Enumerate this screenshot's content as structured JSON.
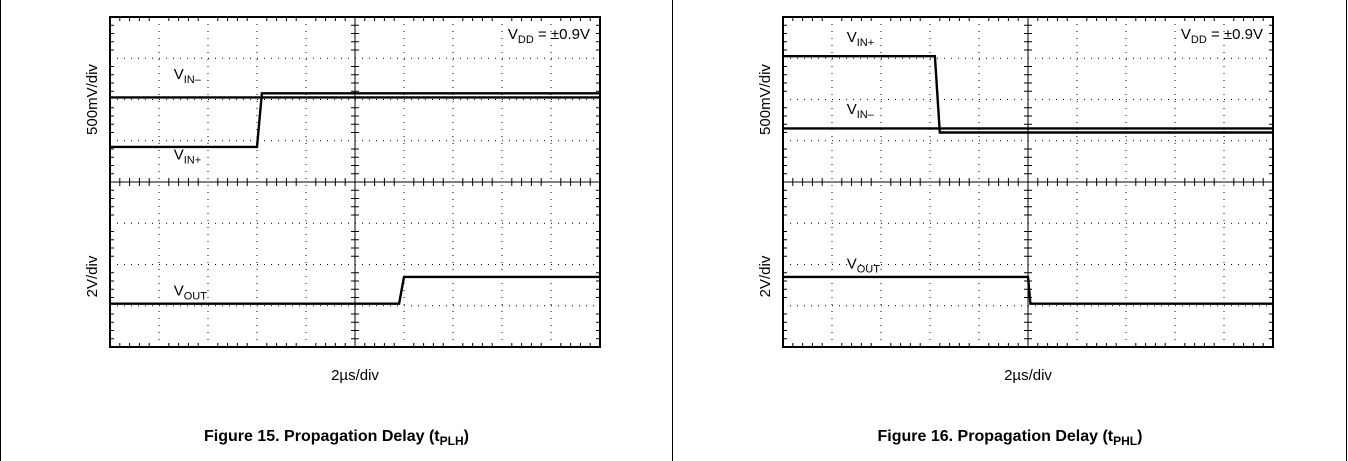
{
  "chart_data": [
    {
      "type": "line",
      "figure": "Figure 15. Propagation Delay (t",
      "figure_sub": "PLH",
      "figure_end": ")",
      "xlabel": "2µs/div",
      "ylabel_top": "500mV/div",
      "ylabel_bottom": "2V/div",
      "annotation": {
        "main": "V",
        "sub": "DD",
        "rest": " = ±0.9V"
      },
      "grid": {
        "x_divisions": 10,
        "y_divisions": 8
      },
      "xlim": [
        0,
        10
      ],
      "ylim": [
        0,
        8
      ],
      "series": [
        {
          "name": "V",
          "name_sub": "IN–",
          "x": [
            0,
            6.1
          ],
          "y": [
            6.05,
            6.05
          ],
          "label_at": [
            1.3,
            6.5
          ]
        },
        {
          "name": "V",
          "name_sub": "IN+",
          "x": [
            0,
            3.0,
            3.1,
            6.1
          ],
          "y": [
            4.85,
            4.85,
            6.15,
            6.15
          ],
          "label_at": [
            1.3,
            4.55
          ]
        },
        {
          "name": "V",
          "name_sub": "OUT",
          "x": [
            0,
            5.9,
            6.0,
            10
          ],
          "y": [
            1.05,
            1.05,
            1.7,
            1.7
          ],
          "label_at": [
            1.3,
            1.25
          ]
        },
        {
          "name": "",
          "name_sub": "",
          "x": [
            6.1,
            10
          ],
          "y": [
            6.05,
            6.05
          ],
          "label_at": null
        },
        {
          "name": "",
          "name_sub": "",
          "x": [
            6.1,
            10
          ],
          "y": [
            6.15,
            6.15
          ],
          "label_at": null
        }
      ]
    },
    {
      "type": "line",
      "figure": "Figure 16. Propagation Delay (t",
      "figure_sub": "PHL",
      "figure_end": ")",
      "xlabel": "2µs/div",
      "ylabel_top": "500mV/div",
      "ylabel_bottom": "2V/div",
      "annotation": {
        "main": "V",
        "sub": "DD",
        "rest": " = ±0.9V"
      },
      "grid": {
        "x_divisions": 10,
        "y_divisions": 8
      },
      "xlim": [
        0,
        10
      ],
      "ylim": [
        0,
        8
      ],
      "series": [
        {
          "name": "V",
          "name_sub": "IN+",
          "x": [
            0,
            3.1,
            3.2,
            10
          ],
          "y": [
            7.05,
            7.05,
            5.2,
            5.2
          ],
          "label_at": [
            1.3,
            7.4
          ]
        },
        {
          "name": "V",
          "name_sub": "IN–",
          "x": [
            0,
            10
          ],
          "y": [
            5.3,
            5.3
          ],
          "label_at": [
            1.3,
            5.65
          ]
        },
        {
          "name": "V",
          "name_sub": "OUT",
          "x": [
            0,
            5.0,
            5.05,
            10
          ],
          "y": [
            1.7,
            1.7,
            1.05,
            1.05
          ],
          "label_at": [
            1.3,
            1.9
          ]
        }
      ]
    }
  ]
}
